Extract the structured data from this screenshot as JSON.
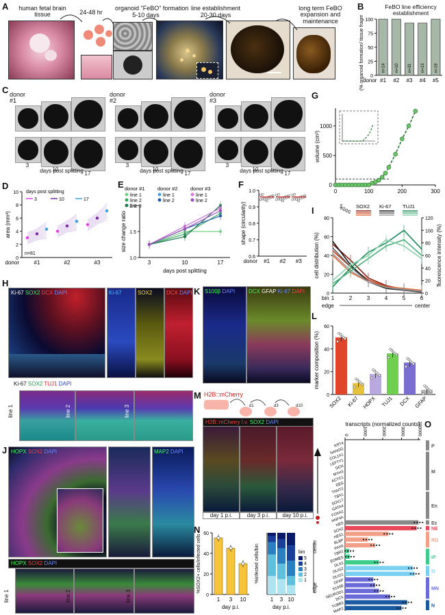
{
  "panel_letters": [
    "A",
    "B",
    "C",
    "D",
    "E",
    "F",
    "G",
    "H",
    "I",
    "J",
    "K",
    "L",
    "M",
    "N",
    "O"
  ],
  "panelA": {
    "labels": [
      "human fetal brain tissue",
      "24-48 hr",
      "organoid \"FeBO\" formation",
      "5-10 days",
      "line establishment",
      "20-30 days",
      "long term FeBO expansion and maintenance"
    ]
  },
  "panelC": {
    "donors": [
      "donor #1",
      "donor #2",
      "donor #3"
    ],
    "ticks": [
      "3",
      "10",
      "17"
    ],
    "xlabel": "days post splitting"
  },
  "panelH": {
    "main": [
      "Ki-67",
      "SOX2",
      "DCX",
      "DAPI"
    ],
    "side": [
      "Ki-67",
      "SOX2",
      "DCX",
      "DAPI"
    ],
    "bottom": [
      "Ki-67",
      "SOX2",
      "TUJ1",
      "DAPI"
    ],
    "lines": [
      "line 1",
      "line 2",
      "line 3"
    ]
  },
  "panelJ": {
    "main": [
      "HOPX",
      "SOX2",
      "DAPI"
    ],
    "side": [
      "MAP2",
      "DAPI"
    ],
    "bottom": [
      "HOPX",
      "SOX2",
      "DAPI"
    ],
    "lines": [
      "line 1",
      "line 2",
      "line 3"
    ]
  },
  "panelK": {
    "left": [
      "S100β",
      "DAPI"
    ],
    "right": [
      "DCX",
      "GFAP",
      "Ki-67",
      "DAPI"
    ]
  },
  "panelM": {
    "construct": "H2B::mCherry",
    "stain": [
      "H2B::mCherry l.v.",
      "SOX2",
      "DAPI"
    ],
    "days": [
      "day 1 p.i.",
      "day 3 p.i.",
      "day 10 p.i."
    ],
    "d_labels": [
      "d1",
      "d3",
      "d10"
    ]
  },
  "chart_data": [
    {
      "id": "B",
      "type": "bar",
      "title": "FeBO line efficiency establishment",
      "ylabel": "(% organoid formation/ tissue fragments)",
      "xlabel": "donor",
      "categories": [
        "#1",
        "#2",
        "#3",
        "#4",
        "#5"
      ],
      "values": [
        100,
        100,
        93,
        93,
        100
      ],
      "n_labels": [
        "n=14",
        "n=10",
        "n=31",
        "n=13",
        "n=19"
      ],
      "ylim": [
        0,
        100
      ],
      "yticks": [
        0,
        25,
        50,
        75,
        100
      ]
    },
    {
      "id": "D",
      "type": "line",
      "ylabel": "area (mm²)",
      "xlabel": "donor",
      "categories": [
        "#1",
        "#2",
        "#3"
      ],
      "legend_title": "days post splitting",
      "series": [
        {
          "name": "3"
        },
        {
          "name": "10"
        },
        {
          "name": "17"
        }
      ],
      "means": [
        [
          3.0,
          4.0,
          5.0
        ],
        [
          3.6,
          4.8,
          6.0
        ],
        [
          4.3,
          5.5,
          7.1
        ]
      ],
      "annotation": "n=81",
      "ylim": [
        0,
        10
      ],
      "yticks": [
        0,
        2,
        4,
        6,
        8,
        10
      ]
    },
    {
      "id": "E",
      "type": "line",
      "ylabel": "size change ratio",
      "xlabel": "days post splitting",
      "x": [
        "3",
        "10",
        "17"
      ],
      "legend_headers": [
        "donor #1",
        "donor #2",
        "donor #3"
      ],
      "series": [
        {
          "name": "line 1",
          "donor": "#1",
          "color": "#7ad08a",
          "values": [
            1.25,
            1.5,
            1.5
          ]
        },
        {
          "name": "line 2",
          "donor": "#1",
          "color": "#3aa863",
          "values": [
            1.25,
            1.45,
            1.85
          ]
        },
        {
          "name": "line 3",
          "donor": "#1",
          "color": "#1c7a4a",
          "values": [
            1.25,
            1.4,
            2.0
          ]
        },
        {
          "name": "line 1",
          "donor": "#2",
          "color": "#4aa3e0",
          "values": [
            1.25,
            1.6,
            1.95
          ]
        },
        {
          "name": "line 2",
          "donor": "#2",
          "color": "#1f5fa8",
          "values": [
            1.25,
            1.55,
            1.8
          ]
        },
        {
          "name": "line 1",
          "donor": "#3",
          "color": "#d878d8",
          "values": [
            1.25,
            1.6,
            1.95
          ]
        },
        {
          "name": "line 2",
          "donor": "#3",
          "color": "#9b4fb8",
          "values": [
            1.25,
            1.55,
            1.9
          ]
        }
      ],
      "ylim": [
        1.0,
        2.0
      ],
      "yticks": [
        1.0,
        1.5,
        2.0
      ]
    },
    {
      "id": "F",
      "type": "scatter",
      "ylabel": "shape (circularity)",
      "xlabel": "donor",
      "categories": [
        "#1",
        "#2",
        "#3"
      ],
      "medians": [
        0.96,
        0.96,
        0.96
      ],
      "ylim": [
        0.6,
        1.0
      ],
      "yticks": [
        0.6,
        0.7,
        0.8,
        0.9,
        1.0
      ]
    },
    {
      "id": "G",
      "type": "line",
      "ylabel": "volume (cm³)",
      "xlabel": "days in culture",
      "x": [
        0,
        10,
        20,
        30,
        40,
        50,
        60,
        70,
        80,
        90,
        100,
        110,
        120,
        130,
        140,
        150,
        160,
        180,
        200,
        220,
        240
      ],
      "values": [
        0,
        0,
        0,
        0,
        0,
        0,
        0,
        0,
        0,
        0,
        0,
        30,
        50,
        80,
        130,
        200,
        300,
        520,
        780,
        1000,
        1250
      ],
      "xlim": [
        0,
        300
      ],
      "xticks": [
        0,
        100,
        200,
        300
      ],
      "ylim": [
        0,
        1300
      ],
      "yticks": [
        0,
        500,
        1000
      ]
    },
    {
      "id": "I",
      "type": "line",
      "ylabel": "cell distribution (%)",
      "ylabel_right": "fluorescence intensity (%)",
      "xlabel": "bin",
      "x_edge": "edge",
      "x_center": "center",
      "x": [
        1,
        2,
        3,
        4,
        5,
        6
      ],
      "markers": [
        "SOX2",
        "Ki-67",
        "TUJ1"
      ],
      "donor_labels": [
        "donor",
        "#1",
        "#2",
        "#3"
      ],
      "series": [
        {
          "name": "SOX2 #1",
          "color": "#8a1a0a",
          "values": [
            52,
            35,
            16,
            8,
            4,
            2
          ]
        },
        {
          "name": "SOX2 #2",
          "color": "#c43a1a",
          "values": [
            45,
            28,
            14,
            7,
            4,
            2
          ]
        },
        {
          "name": "SOX2 #3",
          "color": "#e06a3a",
          "values": [
            40,
            22,
            12,
            7,
            5,
            3
          ]
        },
        {
          "name": "Ki-67 #1",
          "color": "#111111",
          "values": [
            55,
            30,
            12,
            5,
            3,
            1
          ]
        },
        {
          "name": "Ki-67 #2",
          "color": "#555555",
          "values": [
            48,
            28,
            12,
            6,
            3,
            1
          ]
        },
        {
          "name": "Ki-67 #3",
          "color": "#999999",
          "values": [
            42,
            24,
            12,
            6,
            4,
            2
          ]
        },
        {
          "name": "TUJ1 #1",
          "color": "#1a8a5a",
          "values": [
            10,
            40,
            65,
            80,
            100,
            70
          ]
        },
        {
          "name": "TUJ1 #2",
          "color": "#4ab07a",
          "values": [
            15,
            35,
            55,
            75,
            85,
            60
          ]
        },
        {
          "name": "TUJ1 #3",
          "color": "#8ad0aa",
          "values": [
            20,
            45,
            60,
            85,
            75,
            55
          ]
        }
      ],
      "ylim": [
        0,
        80
      ],
      "yticks": [
        0,
        20,
        40,
        60,
        80
      ],
      "ylim_right": [
        0,
        120
      ],
      "yticks_right": [
        0,
        20,
        40,
        60,
        80,
        100,
        120
      ]
    },
    {
      "id": "L",
      "type": "bar",
      "ylabel": "marker composition (%)",
      "categories": [
        "SOX2",
        "Ki-67",
        "HOPX",
        "TUJ1",
        "DCX",
        "GFAP"
      ],
      "values": [
        50,
        10,
        18,
        36,
        28,
        4
      ],
      "colors": [
        "#e0442a",
        "#e6c23a",
        "#b9a8dd",
        "#6fcf4f",
        "#7a6fd0",
        "#b0b0b0"
      ],
      "ylim": [
        0,
        60
      ],
      "yticks": [
        0,
        20,
        40,
        60
      ]
    },
    {
      "id": "N1",
      "type": "bar",
      "ylabel": "%SOX2+ cells/infected cells",
      "xlabel": "day p.i.",
      "categories": [
        "1",
        "3",
        "10"
      ],
      "values": [
        55,
        45,
        30
      ],
      "ylim": [
        0,
        60
      ],
      "yticks": [
        0,
        20,
        40,
        60
      ]
    },
    {
      "id": "N2",
      "type": "bar",
      "ylabel": "%infected cells/bin",
      "xlabel": "day p.i.",
      "categories": [
        "1",
        "3",
        "10"
      ],
      "stack_legend_title": "bin",
      "stack_labels": [
        "1",
        "2",
        "3",
        "4",
        "5"
      ],
      "stacks": [
        [
          30,
          35,
          20,
          10,
          5
        ],
        [
          25,
          25,
          25,
          15,
          10
        ],
        [
          15,
          15,
          25,
          25,
          20
        ]
      ],
      "colors": [
        "#aee4f0",
        "#5fc0de",
        "#2a7fc0",
        "#1a3f9a",
        "#0a1a6a"
      ],
      "axis_words": [
        "edge",
        "center"
      ],
      "ylim": [
        0,
        100
      ]
    },
    {
      "id": "O",
      "type": "bar",
      "title": "transcripts (normalized counts)",
      "xticks": [
        "0",
        "1000",
        "2000",
        "3000",
        "200000"
      ],
      "categories": [
        "KRT4",
        "NANOG",
        "COL1A1",
        "LEFTY1",
        "DCN",
        "MYH3",
        "ACTC1",
        "DES",
        "TNNT2",
        "TBX1",
        "SOX17",
        "GATA4",
        "FOXA2",
        "HNF4A",
        "NES",
        "SOX2",
        "HES1",
        "BLBP",
        "PAX6",
        "TBR2",
        "EOMES",
        "DLX2",
        "OLIG2",
        "OLIG1",
        "GFAP",
        "S100B",
        "NEUROD1",
        "DCX",
        "TUBB3",
        "MAP2"
      ],
      "values": [
        0,
        0,
        0,
        0,
        0,
        0,
        0,
        0,
        0,
        0,
        0,
        0,
        0,
        0,
        3900,
        3800,
        2300,
        1200,
        1600,
        220,
        250,
        1800,
        3600,
        3700,
        1500,
        1600,
        1800,
        2400,
        3300,
        3000
      ],
      "groups": [
        {
          "name": "P",
          "range": [
            0,
            1
          ],
          "color": "#888888"
        },
        {
          "name": "M",
          "range": [
            2,
            8
          ],
          "color": "#888888"
        },
        {
          "name": "En",
          "range": [
            9,
            13
          ],
          "color": "#888888"
        },
        {
          "name": "Ec",
          "range": [
            14,
            14
          ],
          "color": "#888888"
        },
        {
          "name": "NE",
          "range": [
            15,
            15
          ],
          "color": "#e8495a"
        },
        {
          "name": "RG",
          "range": [
            16,
            18
          ],
          "color": "#f2a089"
        },
        {
          "name": "IP",
          "range": [
            19,
            21
          ],
          "color": "#3cce8a"
        },
        {
          "name": "O",
          "range": [
            22,
            23
          ],
          "color": "#7ad0f0"
        },
        {
          "name": "MN",
          "range": [
            24,
            27
          ],
          "color": "#6a6ad8"
        },
        {
          "name": "N",
          "range": [
            28,
            29
          ],
          "color": "#1a5aa0"
        }
      ]
    }
  ]
}
